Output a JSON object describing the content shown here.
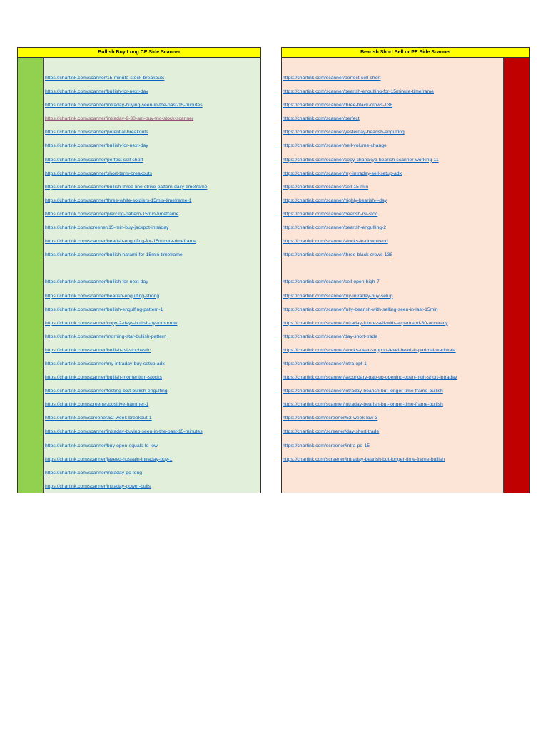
{
  "colors": {
    "header": "#FFFF00",
    "bull_bar": "#92D050",
    "bull_bg": "#E2EFDA",
    "bear_bar": "#C00000",
    "bear_bg": "#FCE4D6",
    "link": "#0563C1",
    "visited_link": "#954F72"
  },
  "bullish": {
    "title": "Bullish Buy Long CE Side Scanner",
    "links": [
      "https://chartink.com/scanner/15-minute-stock-breakouts",
      "https://chartink.com/scanner/bullish-for-next-day",
      "https://chartink.com/scanner/intraday-buying-seen-in-the-past-15-minutes",
      "https://chartink.com/scanner/intraday-9-30-am-buy-fno-stock-scanner",
      "https://chartink.com/scanner/potential-breakouts",
      "https://chartink.com/scanner/bullish-for-next-day",
      "https://chartink.com/scanner/perfect-sell-short",
      "https://chartink.com/scanner/short-term-breakouts",
      "https://chartink.com/scanner/bullish-three-line-strike-pattern-daily-timeframe",
      "https://chartink.com/scanner/three-white-soldiers-15min-timeframe-1",
      "https://chartink.com/scanner/piercing-pattern-15min-timeframe",
      "https://chartink.com/screener/15-min-buy-jackpot-intraday",
      "https://chartink.com/scanner/bearish-engulfing-for-15minute-timeframe",
      "https://chartink.com/scanner/bullish-harami-for-15min-timeframe",
      "",
      "https://chartink.com/scanner/bullish-for-next-day",
      "https://chartink.com/scanner/bearish-engulfing-strong",
      "https://chartink.com/scanner/bullish-engulfing-pattern-1",
      "https://chartink.com/scanner/copy-2-days-bullish-by-tomorrow",
      "https://chartink.com/scanner/morning-star-bullish-pattern",
      "https://chartink.com/scanner/bullish-rsi-stochastic",
      "https://chartink.com/scanner/my-intraday-buy-setup-adx",
      "https://chartink.com/scanner/bullish-momentum-stocks",
      "https://chartink.com/scanner/testing-btst-bullish-engulfing",
      "https://chartink.com/screener/positive-hammer-1",
      "https://chartink.com/screener/52-week-breakout-1",
      "https://chartink.com/scanner/intraday-buying-seen-in-the-past-15-minutes",
      "https://chartink.com/scanner/buy-open-equals-to-low",
      "https://chartink.com/scanner/javeed-hussain-intraday-buy-1",
      "https://chartink.com/scanner/intraday-go-long",
      "https://chartink.com/scanner/intraday-power-bulls"
    ],
    "visited_index": 3
  },
  "bearish": {
    "title": "Bearish Short Sell or PE Side Scanner",
    "links": [
      "https://chartink.com/scanner/perfect-sell-short",
      "https://chartink.com/scanner/bearish-engulfing-for-15minute-timeframe",
      "https://chartink.com/scanner/three-black-crows-138",
      "https://chartink.com/scanner/perfect",
      "https://chartink.com/scanner/yesterday-bearish-engulfing",
      "https://chartink.com/scanner/sell-volume-change",
      "https://chartink.com/scanner/copy-chanakya-bearish-scanner-working-11",
      "https://chartink.com/scanner/my-intraday-sell-setup-adx",
      "https://chartink.com/scanner/sell-15-min",
      "https://chartink.com/scanner/highly-bearish-i-day",
      "https://chartink.com/scanner/bearish-rsi-stoc",
      "https://chartink.com/scanner/bearish-engulfing-2",
      "https://chartink.com/scanner/stocks-in-downtrend",
      "https://chartink.com/scanner/three-black-crows-138",
      "",
      "https://chartink.com/scanner/sell-open-high-7",
      "https://chartink.com/scanner/my-intraday-buy-setup",
      "https://chartink.com/scanner/fully-bearish-with-selling-seen-in-last-15min",
      "https://chartink.com/scanner/intraday-future-sell-with-supertrend-80-accuracy",
      "https://chartink.com/scanner/day-short-trade",
      "https://chartink.com/scanner/stocks-near-support-level-bearish-parimal-wadiwala",
      "https://chartink.com/scanner/intra-opt-1",
      "https://chartink.com/scanner/secondary-gap-up-opening-open-high-short-intraday",
      "https://chartink.com/scanner/intraday-bearish-but-longer-time-frame-bullish",
      "https://chartink.com/scanner/intraday-bearish-but-longer-time-frame-bullish",
      "https://chartink.com/screener/52-week-low-3",
      "https://chartink.com/screener/day-short-trade",
      "https://chartink.com/screener/intra-pe-15",
      "https://chartink.com/screener/intraday-bearish-but-longer-time-frame-bullish"
    ]
  }
}
